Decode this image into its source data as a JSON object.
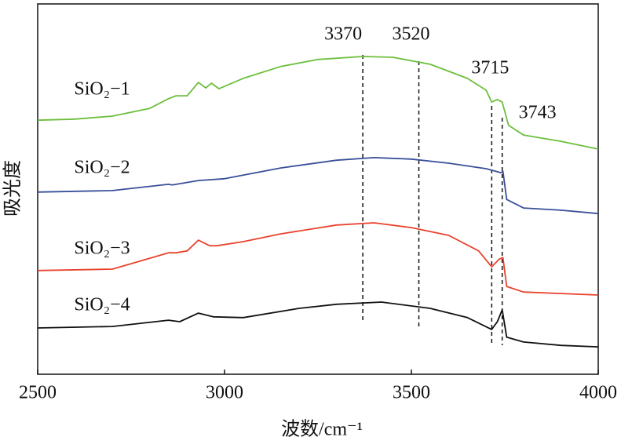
{
  "chart_data": {
    "type": "line",
    "xlabel": "波数/cm⁻¹",
    "ylabel": "吸光度",
    "xlim": [
      2500,
      4000
    ],
    "xticks": [
      2500,
      3000,
      3500,
      4000
    ],
    "ylim": [
      0,
      100
    ],
    "vlines": [
      3370,
      3520,
      3715,
      3743
    ],
    "series": [
      {
        "name": "SiO₂−1",
        "color": "#6cbf3c",
        "x": [
          2500,
          2600,
          2700,
          2800,
          2850,
          2870,
          2900,
          2930,
          2950,
          2965,
          2985,
          3050,
          3150,
          3250,
          3370,
          3450,
          3550,
          3650,
          3700,
          3715,
          3730,
          3743,
          3760,
          3800,
          3900,
          4000
        ],
        "values": [
          68.6,
          68.9,
          69.7,
          71.8,
          74.4,
          75.2,
          75.2,
          78.8,
          77.3,
          78.6,
          77.1,
          79.9,
          83.1,
          85.0,
          85.8,
          85.6,
          83.7,
          79.9,
          76.7,
          73.5,
          74.2,
          73.5,
          67.2,
          64.6,
          62.9,
          60.8
        ]
      },
      {
        "name": "SiO₂−2",
        "color": "#3a4f9a",
        "x": [
          2500,
          2700,
          2850,
          2860,
          2930,
          3000,
          3150,
          3300,
          3400,
          3500,
          3600,
          3700,
          3740,
          3745,
          3755,
          3800,
          3900,
          4000
        ],
        "values": [
          49.2,
          49.6,
          51.3,
          51.1,
          52.3,
          52.8,
          55.7,
          57.8,
          58.5,
          58.1,
          57.0,
          55.5,
          54.4,
          54.8,
          47.2,
          44.9,
          44.3,
          43.4
        ]
      },
      {
        "name": "SiO₂−3",
        "color": "#e8432e",
        "x": [
          2500,
          2700,
          2850,
          2870,
          2900,
          2930,
          2960,
          2980,
          3050,
          3150,
          3300,
          3400,
          3500,
          3600,
          3680,
          3715,
          3735,
          3745,
          3755,
          3800,
          3900,
          4000
        ],
        "values": [
          28.0,
          28.4,
          32.8,
          32.8,
          33.3,
          36.2,
          34.7,
          34.7,
          35.8,
          37.9,
          40.3,
          40.9,
          39.6,
          37.5,
          33.3,
          29.0,
          31.1,
          31.5,
          23.7,
          22.2,
          21.8,
          21.4
        ]
      },
      {
        "name": "SiO₂−4",
        "color": "#111111",
        "x": [
          2500,
          2700,
          2850,
          2880,
          2930,
          2970,
          3050,
          3200,
          3300,
          3420,
          3550,
          3650,
          3715,
          3730,
          3743,
          3755,
          3800,
          3900,
          4000
        ],
        "values": [
          12.5,
          12.9,
          14.6,
          14.2,
          16.5,
          15.5,
          15.3,
          17.8,
          18.9,
          19.5,
          17.8,
          15.3,
          12.1,
          14.2,
          17.4,
          10.0,
          8.7,
          7.8,
          7.4
        ]
      }
    ]
  }
}
